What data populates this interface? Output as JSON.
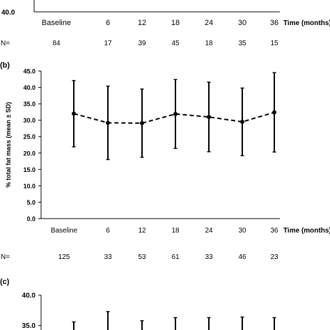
{
  "chart_data": [
    {
      "panel": "a",
      "type": "line",
      "y_tick_labels": [
        "40.0"
      ],
      "categories": [
        "Baseline",
        "6",
        "12",
        "18",
        "24",
        "30",
        "36"
      ],
      "xlabel": "Time (months)",
      "n_label": "N=",
      "n_values": [
        "84",
        "17",
        "39",
        "45",
        "18",
        "35",
        "15"
      ]
    },
    {
      "panel": "b",
      "label": "(b)",
      "type": "line",
      "ylabel": "% total fat mass (mean ± SD)",
      "xlabel": "Time (months)",
      "categories": [
        "Baseline",
        "6",
        "12",
        "18",
        "24",
        "30",
        "36"
      ],
      "y_tick_labels": [
        "0.0",
        "5.0",
        "10.0",
        "15.0",
        "20.0",
        "25.0",
        "30.0",
        "35.0",
        "40.0",
        "45.0"
      ],
      "ylim": [
        0,
        45
      ],
      "mean": [
        32.0,
        29.2,
        29.1,
        31.9,
        31.0,
        29.5,
        32.4
      ],
      "sd": [
        10.1,
        11.2,
        10.4,
        10.5,
        10.6,
        10.3,
        12.1
      ],
      "line_style": "dashed",
      "marker": "circle",
      "color": "#000000",
      "n_label": "N=",
      "n_values": [
        "125",
        "33",
        "53",
        "61",
        "33",
        "46",
        "23"
      ]
    },
    {
      "panel": "c",
      "label": "(c)",
      "type": "line",
      "y_tick_labels": [
        "35.0",
        "40.0"
      ],
      "error_top": [
        35.6,
        37.3,
        35.8,
        36.3,
        36.3,
        36.4,
        36.3
      ]
    }
  ]
}
